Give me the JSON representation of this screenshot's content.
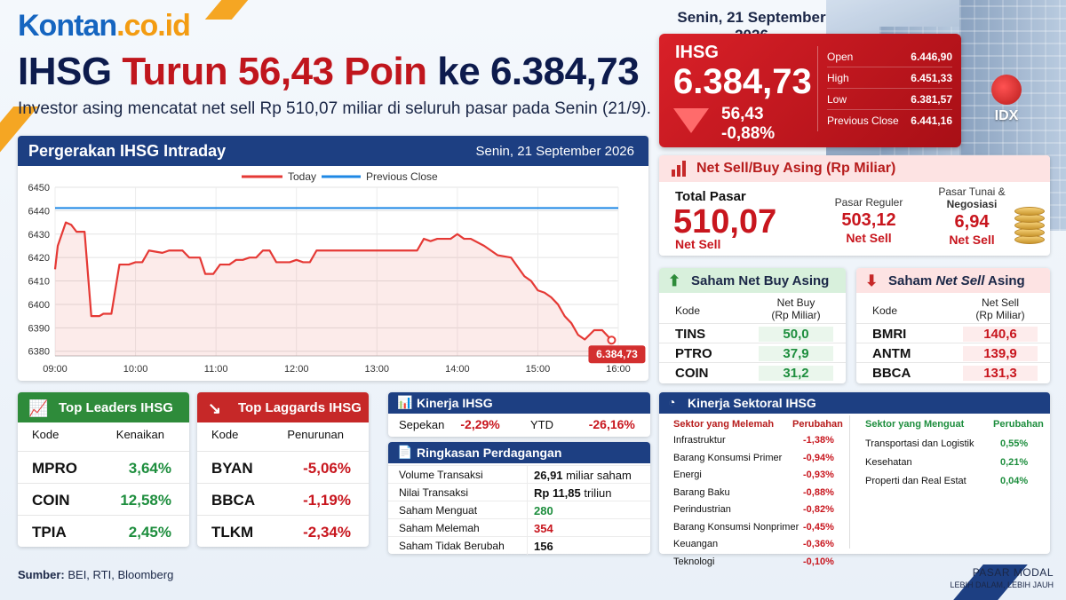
{
  "brand": {
    "name": "Kontan",
    "domain": ".co.id"
  },
  "headline": {
    "prefix": "IHSG",
    "middle": "Turun 56,43 Poin",
    "suffix": "ke 6.384,73"
  },
  "subheadline": "Investor asing mencatat net sell Rp 510,07 miliar di seluruh pasar pada Senin (21/9).",
  "top_date": "Senin, 21 September 2026",
  "ihsg": {
    "label": "IHSG",
    "value": "6.384,73",
    "change": "56,43",
    "change_pct": "-0,88%",
    "stats": [
      {
        "label": "Open",
        "value": "6.446,90"
      },
      {
        "label": "High",
        "value": "6.451,33"
      },
      {
        "label": "Low",
        "value": "6.381,57"
      },
      {
        "label": "Previous Close",
        "value": "6.441,16"
      }
    ],
    "idx_logo": "IDX"
  },
  "intraday": {
    "title": "Pergerakan IHSG Intraday",
    "date": "Senin, 21 September 2026",
    "legend_today": "Today",
    "legend_prev": "Previous Close",
    "last_label": "6.384,73"
  },
  "net_asing": {
    "title": "Net Sell/Buy Asing (Rp Miliar)",
    "total_label": "Total Pasar",
    "total_value": "510,07",
    "total_sub": "Net Sell",
    "reguler_label": "Pasar Reguler",
    "reguler_value": "503,12",
    "reguler_sub": "Net Sell",
    "tunai_label_1": "Pasar Tunai &",
    "tunai_label_2": "Negosiasi",
    "tunai_value": "6,94",
    "tunai_sub": "Net Sell"
  },
  "net_buy": {
    "title": "Saham Net Buy Asing",
    "col_kode": "Kode",
    "col_val_1": "Net Buy",
    "col_val_2": "(Rp Miliar)",
    "rows": [
      {
        "kode": "TINS",
        "val": "50,0"
      },
      {
        "kode": "PTRO",
        "val": "37,9"
      },
      {
        "kode": "COIN",
        "val": "31,2"
      }
    ]
  },
  "net_sell": {
    "title_prefix": "Saham",
    "title_em": "Net Sell",
    "title_suffix": "Asing",
    "col_kode": "Kode",
    "col_val_1": "Net Sell",
    "col_val_2": "(Rp Miliar)",
    "rows": [
      {
        "kode": "BMRI",
        "val": "140,6"
      },
      {
        "kode": "ANTM",
        "val": "139,9"
      },
      {
        "kode": "BBCA",
        "val": "131,3"
      }
    ]
  },
  "leaders": {
    "title": "Top Leaders IHSG",
    "col_kode": "Kode",
    "col_val": "Kenaikan",
    "rows": [
      {
        "kode": "MPRO",
        "val": "3,64%"
      },
      {
        "kode": "COIN",
        "val": "12,58%"
      },
      {
        "kode": "TPIA",
        "val": "2,45%"
      }
    ]
  },
  "laggards": {
    "title": "Top Laggards IHSG",
    "col_kode": "Kode",
    "col_val": "Penurunan",
    "rows": [
      {
        "kode": "BYAN",
        "val": "-5,06%"
      },
      {
        "kode": "BBCA",
        "val": "-1,19%"
      },
      {
        "kode": "TLKM",
        "val": "-2,34%"
      }
    ]
  },
  "kinerja": {
    "title": "Kinerja IHSG",
    "sepekan_label": "Sepekan",
    "sepekan_value": "-2,29%",
    "ytd_label": "YTD",
    "ytd_value": "-26,16%"
  },
  "ringkasan": {
    "title": "Ringkasan Perdagangan",
    "rows": [
      {
        "label": "Volume Transaksi",
        "bold": "26,91",
        "rest": " miliar saham",
        "color": "#111111"
      },
      {
        "label": "Nilai Transaksi",
        "bold": "Rp 11,85",
        "rest": " triliun",
        "color": "#111111"
      },
      {
        "label": "Saham Menguat",
        "bold": "280",
        "rest": "",
        "color": "#1e8e3e"
      },
      {
        "label": "Saham Melemah",
        "bold": "354",
        "rest": "",
        "color": "#c8161e"
      },
      {
        "label": "Saham Tidak Berubah",
        "bold": "156",
        "rest": "",
        "color": "#111111"
      }
    ]
  },
  "sektoral": {
    "title": "Kinerja Sektoral IHSG",
    "melemah_header": "Sektor yang Melemah",
    "melemah_col": "Perubahan",
    "menguat_header": "Sektor yang Menguat",
    "menguat_col": "Perubahan",
    "melemah": [
      {
        "sektor": "Infrastruktur",
        "val": "-1,38%"
      },
      {
        "sektor": "Barang Konsumsi Primer",
        "val": "-0,94%"
      },
      {
        "sektor": "Energi",
        "val": "-0,93%"
      },
      {
        "sektor": "Barang Baku",
        "val": "-0,88%"
      },
      {
        "sektor": "Perindustrian",
        "val": "-0,82%"
      },
      {
        "sektor": "Barang Konsumsi Nonprimer",
        "val": "-0,45%"
      },
      {
        "sektor": "Keuangan",
        "val": "-0,36%"
      },
      {
        "sektor": "Teknologi",
        "val": "-0,10%"
      }
    ],
    "menguat": [
      {
        "sektor": "Transportasi dan Logistik",
        "val": "0,55%"
      },
      {
        "sektor": "Kesehatan",
        "val": "0,21%"
      },
      {
        "sektor": "Properti dan Real Estat",
        "val": "0,04%"
      }
    ]
  },
  "source_label": "Sumber:",
  "source_text": " BEI, RTI, Bloomberg",
  "footer": {
    "line1": "PASAR MODAL",
    "line2": "LEBIH DALAM, LEBIH JAUH"
  },
  "colors": {
    "red": "#c8161e",
    "green": "#1e8e3e",
    "navy": "#1d3f82",
    "prev_close_line": "#1e88e5"
  },
  "chart_data": {
    "type": "line",
    "title": "Pergerakan IHSG Intraday",
    "x_ticks": [
      "09:00",
      "10:00",
      "11:00",
      "12:00",
      "13:00",
      "14:00",
      "15:00",
      "16:00"
    ],
    "y_ticks": [
      6380,
      6390,
      6400,
      6410,
      6420,
      6430,
      6440,
      6450
    ],
    "ylim": [
      6378,
      6450
    ],
    "grid": true,
    "legend_placement": "top",
    "series": [
      {
        "name": "Today",
        "color": "#e53935",
        "points": [
          [
            "09:00",
            6415
          ],
          [
            "09:02",
            6425
          ],
          [
            "09:08",
            6435
          ],
          [
            "09:12",
            6434
          ],
          [
            "09:16",
            6431
          ],
          [
            "09:22",
            6431
          ],
          [
            "09:27",
            6395
          ],
          [
            "09:33",
            6395
          ],
          [
            "09:36",
            6396
          ],
          [
            "09:42",
            6396
          ],
          [
            "09:48",
            6417
          ],
          [
            "09:55",
            6417
          ],
          [
            "10:00",
            6418
          ],
          [
            "10:05",
            6418
          ],
          [
            "10:10",
            6423
          ],
          [
            "10:20",
            6422
          ],
          [
            "10:25",
            6423
          ],
          [
            "10:35",
            6423
          ],
          [
            "10:40",
            6420
          ],
          [
            "10:48",
            6420
          ],
          [
            "10:52",
            6413
          ],
          [
            "10:58",
            6413
          ],
          [
            "11:03",
            6417
          ],
          [
            "11:10",
            6417
          ],
          [
            "11:15",
            6419
          ],
          [
            "11:20",
            6419
          ],
          [
            "11:25",
            6420
          ],
          [
            "11:30",
            6420
          ],
          [
            "11:35",
            6423
          ],
          [
            "11:40",
            6423
          ],
          [
            "11:45",
            6418
          ],
          [
            "11:55",
            6418
          ],
          [
            "12:00",
            6419
          ],
          [
            "12:05",
            6418
          ],
          [
            "12:10",
            6418
          ],
          [
            "12:15",
            6423
          ],
          [
            "13:20",
            6423
          ],
          [
            "13:30",
            6423
          ],
          [
            "13:35",
            6428
          ],
          [
            "13:40",
            6427
          ],
          [
            "13:45",
            6428
          ],
          [
            "13:55",
            6428
          ],
          [
            "14:00",
            6430
          ],
          [
            "14:05",
            6428
          ],
          [
            "14:10",
            6428
          ],
          [
            "14:20",
            6425
          ],
          [
            "14:30",
            6421
          ],
          [
            "14:40",
            6420
          ],
          [
            "14:45",
            6416
          ],
          [
            "14:50",
            6412
          ],
          [
            "14:55",
            6410
          ],
          [
            "15:00",
            6406
          ],
          [
            "15:05",
            6405
          ],
          [
            "15:10",
            6403
          ],
          [
            "15:15",
            6400
          ],
          [
            "15:20",
            6395
          ],
          [
            "15:25",
            6392
          ],
          [
            "15:30",
            6387
          ],
          [
            "15:35",
            6385
          ],
          [
            "15:42",
            6389
          ],
          [
            "15:48",
            6389
          ],
          [
            "15:55",
            6384.73
          ]
        ]
      },
      {
        "name": "Previous Close",
        "color": "#1e88e5",
        "constant": 6441.16
      }
    ]
  }
}
